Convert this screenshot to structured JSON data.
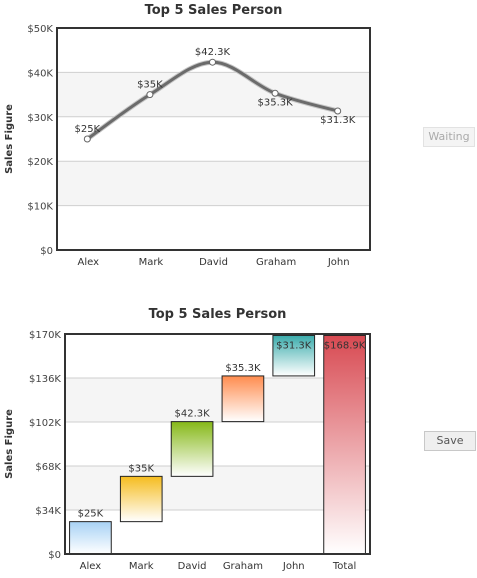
{
  "buttons": {
    "waiting_label": "Waiting",
    "save_label": "Save"
  },
  "chart_data": [
    {
      "type": "line",
      "title": "Top 5 Sales Person",
      "xlabel": "",
      "ylabel": "Sales Figure",
      "categories": [
        "Alex",
        "Mark",
        "David",
        "Graham",
        "John"
      ],
      "values": [
        25000,
        35000,
        42300,
        35300,
        31300
      ],
      "data_labels": [
        "$25K",
        "$35K",
        "$42.3K",
        "$35.3K",
        "$31.3K"
      ],
      "y_ticks": [
        "$0",
        "$10K",
        "$20K",
        "$30K",
        "$40K",
        "$50K"
      ],
      "ylim": [
        0,
        50000
      ],
      "line_color": "#6b6b6b",
      "grid": true
    },
    {
      "type": "bar",
      "subtype": "waterfall",
      "title": "Top 5 Sales Person",
      "xlabel": "",
      "ylabel": "Sales Figure",
      "categories": [
        "Alex",
        "Mark",
        "David",
        "Graham",
        "John",
        "Total"
      ],
      "values": [
        25000,
        35000,
        42300,
        35300,
        31300,
        168900
      ],
      "data_labels": [
        "$25K",
        "$35K",
        "$42.3K",
        "$35.3K",
        "$31.3K",
        "$168.9K"
      ],
      "y_ticks": [
        "$0",
        "$34K",
        "$68K",
        "$102K",
        "$136K",
        "$170K"
      ],
      "ylim": [
        0,
        170000
      ],
      "colors": [
        "#a8d2f5",
        "#f5bc1e",
        "#86b818",
        "#ff8c4e",
        "#3aacac",
        "#d84a52"
      ],
      "grid": true
    }
  ]
}
